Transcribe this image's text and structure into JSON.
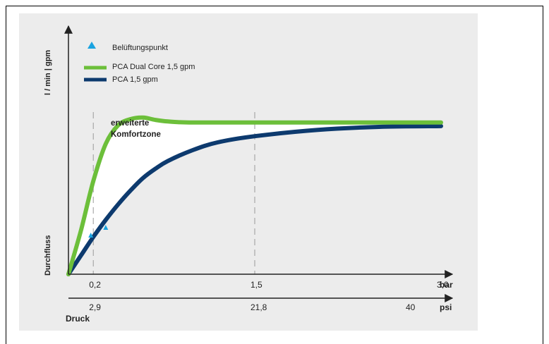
{
  "chart_data": {
    "type": "line",
    "ylabel_bottom": "Durchfluss",
    "ylabel_top": "l / min | gpm",
    "legend": [
      {
        "name": "Belüftungspunkt",
        "marker": "triangle",
        "color": "#1aa3e0"
      },
      {
        "name": "PCA Dual Core 1,5 gpm",
        "marker": "line",
        "color": "#6cbf3a"
      },
      {
        "name": "PCA 1,5 gpm",
        "marker": "line",
        "color": "#0d3a6e"
      }
    ],
    "annotation_lines": [
      "erweiterte",
      "Komfortzone"
    ],
    "x_bar_unit": "bar",
    "x_bar_ticks": [
      "0,2",
      "1,5",
      "3,0"
    ],
    "x_psi_unit": "psi",
    "x_psi_ticks": [
      "2,9",
      "21,8",
      "40"
    ],
    "x_title": "Druck",
    "xlim_bar": [
      0,
      3.0
    ],
    "vertical_reference_lines_bar": [
      0.2,
      1.5
    ],
    "series": [
      {
        "name": "PCA Dual Core 1,5 gpm",
        "color": "#6cbf3a",
        "x": [
          0,
          0.1,
          0.2,
          0.3,
          0.4,
          0.5,
          0.6,
          0.7,
          0.8,
          0.9,
          1.0,
          1.2,
          1.5,
          2.0,
          2.5,
          3.0
        ],
        "y": [
          0,
          0.28,
          0.6,
          0.84,
          0.96,
          1.0,
          1.01,
          0.995,
          0.985,
          0.98,
          0.978,
          0.978,
          0.978,
          0.978,
          0.978,
          0.978
        ]
      },
      {
        "name": "PCA 1,5 gpm",
        "color": "#0d3a6e",
        "x": [
          0,
          0.1,
          0.2,
          0.3,
          0.4,
          0.5,
          0.6,
          0.7,
          0.8,
          1.0,
          1.2,
          1.5,
          2.0,
          2.5,
          3.0
        ],
        "y": [
          0,
          0.12,
          0.24,
          0.35,
          0.45,
          0.54,
          0.62,
          0.68,
          0.73,
          0.8,
          0.85,
          0.89,
          0.93,
          0.95,
          0.955
        ]
      }
    ],
    "aeration_points": [
      {
        "x": 0.18,
        "y": 0.25
      },
      {
        "x": 0.3,
        "y": 0.3
      }
    ]
  }
}
